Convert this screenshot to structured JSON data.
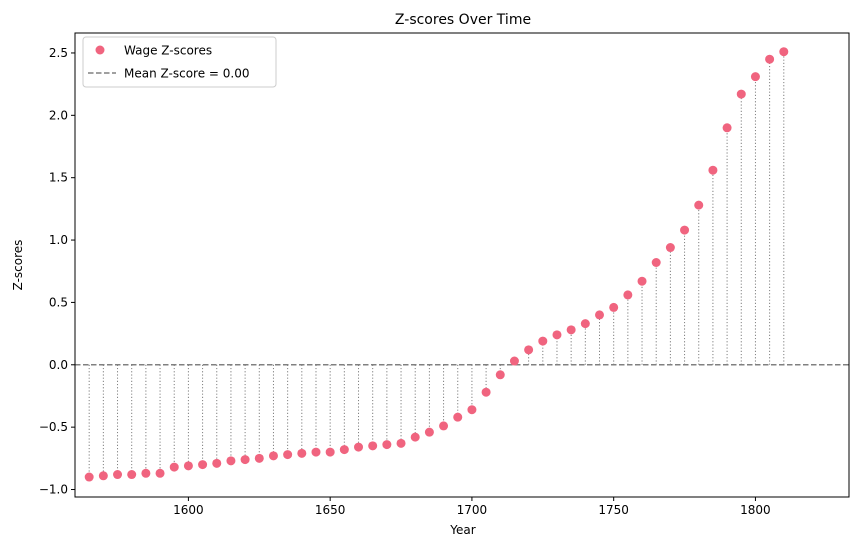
{
  "chart_data": {
    "type": "scatter",
    "title": "Z-scores Over Time",
    "xlabel": "Year",
    "ylabel": "Z-scores",
    "xlim": [
      1560,
      1833
    ],
    "ylim": [
      -1.06,
      2.66
    ],
    "xticks": [
      1600,
      1650,
      1700,
      1750,
      1800
    ],
    "xtick_labels": [
      "1600",
      "1650",
      "1700",
      "1750",
      "1800"
    ],
    "yticks": [
      -1.0,
      -0.5,
      0.0,
      0.5,
      1.0,
      1.5,
      2.0,
      2.5
    ],
    "ytick_labels": [
      "−1.0",
      "−0.5",
      "0.0",
      "0.5",
      "1.0",
      "1.5",
      "2.0",
      "2.5"
    ],
    "grid": false,
    "legend_position": "upper-left",
    "series": [
      {
        "name": "Wage Z-scores",
        "style": "markers with dotted stems to mean line",
        "color": "#f0647f",
        "x": [
          1565,
          1570,
          1575,
          1580,
          1585,
          1590,
          1595,
          1600,
          1605,
          1610,
          1615,
          1620,
          1625,
          1630,
          1635,
          1640,
          1645,
          1650,
          1655,
          1660,
          1665,
          1670,
          1675,
          1680,
          1685,
          1690,
          1695,
          1700,
          1705,
          1710,
          1715,
          1720,
          1725,
          1730,
          1735,
          1740,
          1745,
          1750,
          1755,
          1760,
          1765,
          1770,
          1775,
          1780,
          1785,
          1790,
          1795,
          1800,
          1805,
          1810
        ],
        "y": [
          -0.9,
          -0.89,
          -0.88,
          -0.88,
          -0.87,
          -0.87,
          -0.82,
          -0.81,
          -0.8,
          -0.79,
          -0.77,
          -0.76,
          -0.75,
          -0.73,
          -0.72,
          -0.71,
          -0.7,
          -0.7,
          -0.68,
          -0.66,
          -0.65,
          -0.64,
          -0.63,
          -0.58,
          -0.54,
          -0.49,
          -0.42,
          -0.36,
          -0.22,
          -0.08,
          0.03,
          0.12,
          0.19,
          0.24,
          0.28,
          0.33,
          0.4,
          0.46,
          0.56,
          0.67,
          0.82,
          0.94,
          1.08,
          1.28,
          1.56,
          1.9,
          2.17,
          2.31,
          2.45,
          2.51
        ]
      },
      {
        "name": "Mean Z-score = 0.00",
        "style": "dashed horizontal line",
        "color": "#808080",
        "y": 0.0
      }
    ]
  }
}
